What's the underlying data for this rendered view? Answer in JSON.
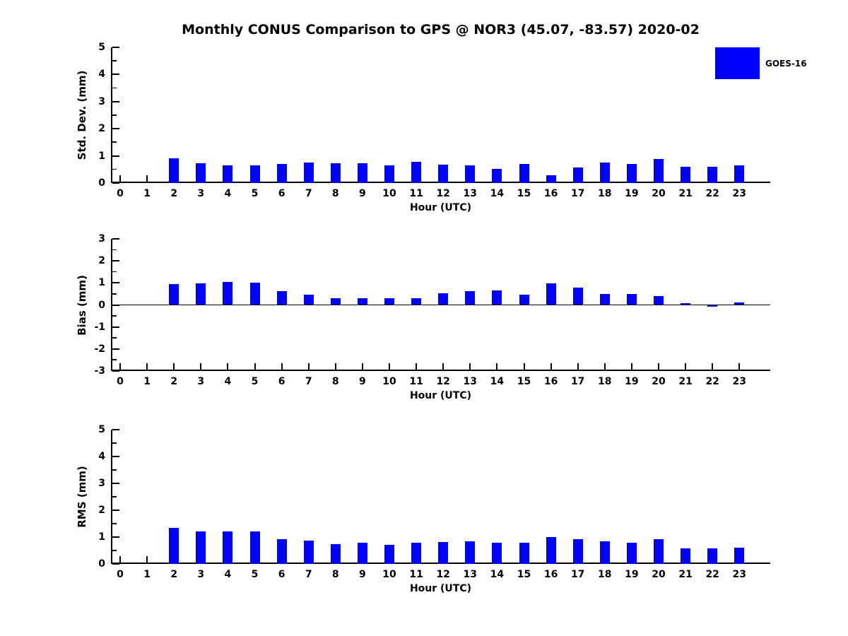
{
  "title": "Monthly CONUS Comparison to GPS @ NOR3 (45.07, -83.57) 2020-02",
  "legend": {
    "label": "GOES-16",
    "color": "#0000ff"
  },
  "chart_data": [
    {
      "type": "bar",
      "title": "",
      "ylabel": "Std. Dev. (mm)",
      "xlabel": "Hour (UTC)",
      "ylim": [
        0,
        5
      ],
      "yticks": [
        0,
        1,
        2,
        3,
        4,
        5
      ],
      "grid": false,
      "legend_position": "upper-right-outside",
      "categories": [
        0,
        1,
        2,
        3,
        4,
        5,
        6,
        7,
        8,
        9,
        10,
        11,
        12,
        13,
        14,
        15,
        16,
        17,
        18,
        19,
        20,
        21,
        22,
        23
      ],
      "series": [
        {
          "name": "GOES-16",
          "color": "#0000ff",
          "values": [
            null,
            null,
            0.91,
            0.74,
            0.66,
            0.66,
            0.71,
            0.75,
            0.72,
            0.72,
            0.64,
            0.78,
            0.68,
            0.66,
            0.53,
            0.7,
            0.28,
            0.56,
            0.75,
            0.7,
            0.88,
            0.6,
            0.6,
            0.65
          ]
        }
      ]
    },
    {
      "type": "bar",
      "title": "",
      "ylabel": "Bias (mm)",
      "xlabel": "Hour (UTC)",
      "ylim": [
        -3,
        3
      ],
      "yticks": [
        -3,
        -2,
        -1,
        0,
        1,
        2,
        3
      ],
      "grid": false,
      "zero_line": true,
      "categories": [
        0,
        1,
        2,
        3,
        4,
        5,
        6,
        7,
        8,
        9,
        10,
        11,
        12,
        13,
        14,
        15,
        16,
        17,
        18,
        19,
        20,
        21,
        22,
        23
      ],
      "series": [
        {
          "name": "GOES-16",
          "color": "#0000ff",
          "values": [
            null,
            null,
            0.95,
            0.99,
            1.03,
            1.02,
            0.61,
            0.45,
            0.3,
            0.3,
            0.3,
            0.32,
            0.53,
            0.62,
            0.66,
            0.45,
            0.99,
            0.78,
            0.5,
            0.5,
            0.39,
            0.08,
            -0.08,
            0.12
          ]
        }
      ]
    },
    {
      "type": "bar",
      "title": "",
      "ylabel": "RMS (mm)",
      "xlabel": "Hour (UTC)",
      "ylim": [
        0,
        5
      ],
      "yticks": [
        0,
        1,
        2,
        3,
        4,
        5
      ],
      "grid": false,
      "categories": [
        0,
        1,
        2,
        3,
        4,
        5,
        6,
        7,
        8,
        9,
        10,
        11,
        12,
        13,
        14,
        15,
        16,
        17,
        18,
        19,
        20,
        21,
        22,
        23
      ],
      "series": [
        {
          "name": "GOES-16",
          "color": "#0000ff",
          "values": [
            null,
            null,
            1.33,
            1.22,
            1.22,
            1.2,
            0.92,
            0.86,
            0.75,
            0.79,
            0.7,
            0.8,
            0.81,
            0.85,
            0.78,
            0.8,
            1.0,
            0.91,
            0.84,
            0.8,
            0.93,
            0.58,
            0.57,
            0.61
          ]
        }
      ]
    }
  ]
}
